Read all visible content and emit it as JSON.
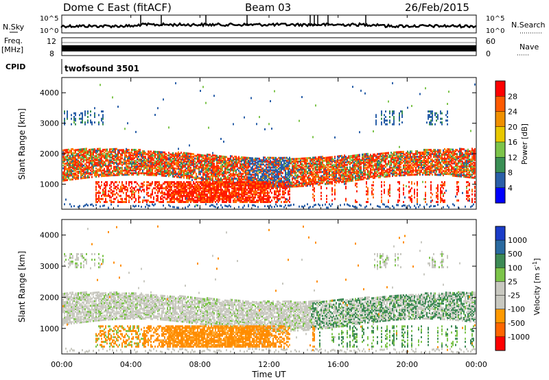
{
  "header": {
    "station": "Dome C East (fitACF)",
    "beam": "Beam 03",
    "date": "26/Feb/2015"
  },
  "top_panels": {
    "nsky_label": "N.Sky",
    "nsky_ticks": [
      "10^5",
      "10^0"
    ],
    "nsearch_label": "N.Search",
    "freq_label_line1": "Freq.",
    "freq_label_line2": "[MHz]",
    "freq_ticks": [
      "12",
      "8"
    ],
    "nave_label": "Nave",
    "nave_ticks": [
      "60",
      "0"
    ],
    "cpid_label": "CPID",
    "cpid_text": "twofsound 3501"
  },
  "chart_data": [
    {
      "type": "heatmap",
      "panel": "power",
      "ylabel": "Slant Range [km]",
      "yticks": [
        1000,
        2000,
        3000,
        4000
      ],
      "ylim": [
        180,
        4500
      ],
      "xlim": [
        "00:00",
        "24:00"
      ],
      "colorbar_label": "Power [dB]",
      "colorbar_ticks": [
        "28",
        "24",
        "20",
        "16",
        "12",
        "8",
        "4"
      ],
      "colorbar_colors": [
        "#ff0000",
        "#ff5a00",
        "#f09000",
        "#e8c800",
        "#7cc44a",
        "#3a8f55",
        "#2a5fa8",
        "#0000ff"
      ]
    },
    {
      "type": "heatmap",
      "panel": "velocity",
      "ylabel": "Slant Range [km]",
      "yticks": [
        1000,
        2000,
        3000,
        4000
      ],
      "ylim": [
        180,
        4500
      ],
      "xlim": [
        "00:00",
        "24:00"
      ],
      "colorbar_label": "Velocity [m s^-1]",
      "colorbar_ticks": [
        "1000",
        "500",
        "100",
        "25",
        "-25",
        "-100",
        "-500",
        "-1000"
      ],
      "colorbar_colors": [
        "#1a3cc8",
        "#2a6aa0",
        "#3d8a55",
        "#7cc44a",
        "#c8c8c0",
        "#c8c8c0",
        "#ff9900",
        "#ff6600",
        "#ff0000"
      ]
    }
  ],
  "xaxis": {
    "ticks": [
      "00:00",
      "04:00",
      "08:00",
      "12:00",
      "16:00",
      "20:00",
      "00:00"
    ],
    "label": "Time UT"
  }
}
